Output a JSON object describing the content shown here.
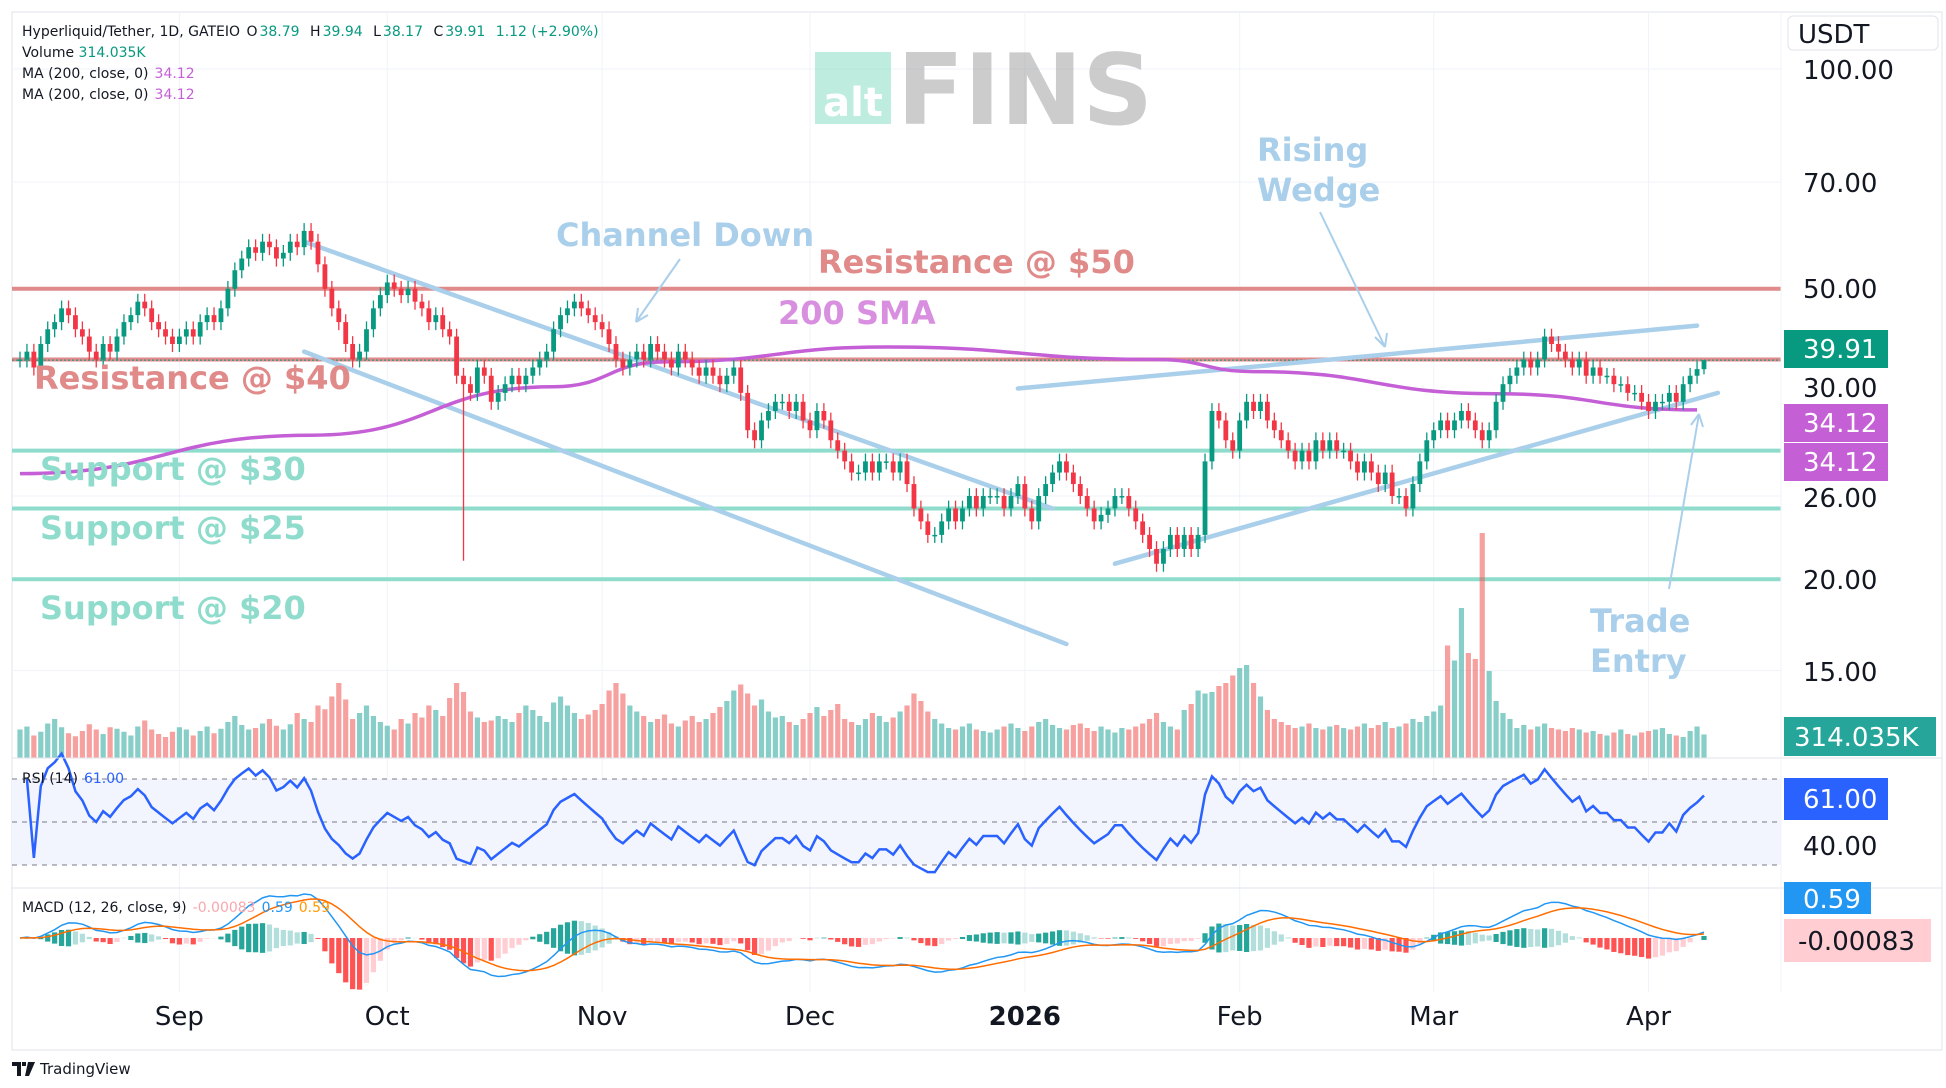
{
  "header": {
    "symbol": "Hyperliquid/Tether, 1D, GATEIO",
    "o_label": "O",
    "open": "38.79",
    "h_label": "H",
    "high": "39.94",
    "l_label": "L",
    "low": "38.17",
    "c_label": "C",
    "close": "39.91",
    "change": "1.12 (+2.90%)",
    "volume_label": "Volume",
    "volume": "314.035K",
    "ma1_label": "MA (200, close, 0)",
    "ma1_value": "34.12",
    "ma2_label": "MA (200, close, 0)",
    "ma2_value": "34.12",
    "rsi_label": "RSI (14)",
    "rsi_value": "61.00",
    "macd_label": "MACD (12, 26, close, 9)",
    "macd_hist": "-0.00083",
    "macd_line": "0.59",
    "macd_signal": "0.59"
  },
  "watermark": {
    "prefix": "alt",
    "name": "FINS"
  },
  "price_axis": {
    "currency": "USDT",
    "ticks": [
      "100.00",
      "70.00",
      "50.00",
      "30.00",
      "26.00",
      "20.00",
      "15.00"
    ],
    "rsi_tick": "40.00",
    "last_price_badge": "39.91",
    "ma_badges": [
      "34.12",
      "34.12"
    ],
    "volume_badge": "314.035K",
    "rsi_badge": "61.00",
    "macd_badge": "0.59",
    "macd_hist_badge": "-0.00083"
  },
  "time_axis": [
    {
      "label": "Sep",
      "date": "2025-09-01"
    },
    {
      "label": "Oct",
      "date": "2025-10-01"
    },
    {
      "label": "Nov",
      "date": "2025-11-01"
    },
    {
      "label": "Dec",
      "date": "2025-12-01"
    },
    {
      "label": "2026",
      "date": "2026-01-01",
      "bold": true
    },
    {
      "label": "Feb",
      "date": "2026-02-01"
    },
    {
      "label": "Mar",
      "date": "2026-03-01"
    },
    {
      "label": "Apr",
      "date": "2026-04-01"
    }
  ],
  "annotations": {
    "resistance_50": "Resistance @ $50",
    "resistance_40": "Resistance @ $40",
    "sma_200": "200 SMA",
    "channel_down": "Channel Down",
    "rising_wedge_1": "Rising",
    "rising_wedge_2": "Wedge",
    "support_30": "Support @ $30",
    "support_25": "Support @ $25",
    "support_20": "Support @ $20",
    "trade_entry_1": "Trade",
    "trade_entry_2": "Entry"
  },
  "footer": {
    "brand": "TradingView"
  },
  "colors": {
    "up": "#089981",
    "down": "#f23645",
    "vol_up": "#26a69a",
    "vol_down": "#ef5350",
    "ma": "#c45fd6",
    "rsi": "#2962ff",
    "macd": "#2196f3",
    "signal": "#ff6d00",
    "resistance": "#e08a8a",
    "support": "#8fdccc",
    "pattern": "#a9cfeb",
    "sma_label": "#d98fe0"
  },
  "chart_data": {
    "type": "candlestick",
    "scale": "log",
    "ylim": [
      12,
      110
    ],
    "start_date": "2025-08-09",
    "interval": "1D",
    "closes": [
      40,
      41,
      39,
      42,
      44,
      45,
      47,
      46,
      44,
      43,
      41,
      40,
      42,
      41,
      43,
      45,
      46,
      48,
      47,
      45,
      44,
      43,
      42,
      43,
      44,
      43,
      45,
      46,
      45,
      47,
      50,
      53,
      55,
      57,
      56,
      58,
      57,
      55,
      56,
      58,
      57,
      60,
      58,
      54,
      50,
      47,
      45,
      42,
      40,
      41,
      44,
      47,
      49,
      51,
      50,
      49,
      50,
      48,
      47,
      45,
      46,
      44,
      43,
      38,
      37,
      36,
      39,
      38,
      35,
      36,
      37,
      38,
      37,
      38,
      39,
      40,
      41,
      44,
      46,
      47,
      48,
      47,
      46,
      45,
      44,
      42,
      40,
      39,
      40,
      41,
      40,
      42,
      41,
      40,
      39,
      41,
      40,
      39,
      38,
      39,
      38,
      37,
      38,
      39,
      36,
      32,
      31,
      33,
      34,
      35,
      35,
      34,
      35,
      33,
      32,
      34,
      33,
      31,
      30,
      29,
      28,
      28,
      29,
      28,
      29,
      29,
      28,
      29,
      27,
      25,
      24,
      23,
      23,
      24,
      25,
      24,
      25,
      26,
      25,
      26,
      26,
      26,
      25,
      26,
      27,
      25,
      24,
      26,
      27,
      28,
      29,
      28,
      27,
      26,
      25,
      24,
      24.5,
      25,
      26,
      26,
      25,
      24,
      23,
      22,
      21,
      22,
      23,
      22,
      23,
      22,
      23,
      29,
      34,
      33,
      31,
      30,
      33,
      35,
      34,
      35,
      33,
      32,
      31,
      30,
      29,
      30,
      29,
      31,
      30,
      31,
      30,
      30,
      29,
      28,
      29,
      28,
      27,
      28,
      26,
      26,
      25,
      27,
      29,
      31,
      32,
      33,
      32,
      33,
      34,
      33,
      32,
      31,
      32,
      35,
      37,
      38,
      39,
      40,
      39,
      40,
      43,
      42,
      41,
      40,
      39,
      40,
      38,
      39,
      38,
      38,
      37,
      37,
      36,
      36,
      35,
      34,
      35,
      35,
      36,
      35,
      37,
      38,
      38.8,
      39.91
    ],
    "last_ohlc": {
      "open": 38.79,
      "high": 39.94,
      "low": 38.17,
      "close": 39.91
    },
    "wick_lows": [
      {
        "date": "2025-10-12",
        "low": 21.2
      }
    ],
    "volume_k": [
      380,
      420,
      300,
      350,
      460,
      520,
      410,
      330,
      290,
      360,
      450,
      380,
      320,
      410,
      390,
      350,
      300,
      420,
      500,
      380,
      320,
      280,
      350,
      410,
      380,
      300,
      360,
      420,
      330,
      390,
      480,
      560,
      440,
      380,
      400,
      460,
      520,
      430,
      380,
      450,
      600,
      520,
      480,
      700,
      650,
      820,
      1000,
      780,
      520,
      600,
      700,
      560,
      480,
      430,
      380,
      520,
      460,
      600,
      540,
      700,
      640,
      560,
      800,
      1000,
      880,
      620,
      540,
      480,
      500,
      560,
      520,
      480,
      600,
      700,
      640,
      560,
      480,
      740,
      820,
      700,
      600,
      520,
      580,
      640,
      720,
      900,
      1000,
      860,
      700,
      620,
      560,
      480,
      520,
      580,
      460,
      420,
      500,
      560,
      480,
      520,
      600,
      680,
      760,
      900,
      980,
      860,
      700,
      780,
      620,
      540,
      560,
      480,
      440,
      520,
      600,
      680,
      560,
      640,
      720,
      520,
      480,
      440,
      520,
      600,
      560,
      480,
      540,
      620,
      700,
      860,
      760,
      620,
      520,
      460,
      400,
      380,
      420,
      460,
      380,
      360,
      340,
      380,
      420,
      460,
      400,
      360,
      420,
      480,
      520,
      440,
      400,
      380,
      440,
      460,
      400,
      360,
      420,
      380,
      340,
      400,
      380,
      420,
      460,
      520,
      600,
      480,
      420,
      380,
      640,
      720,
      900,
      860,
      880,
      960,
      1000,
      1100,
      1200,
      1240,
      1000,
      820,
      640,
      520,
      480,
      440,
      400,
      420,
      460,
      400,
      380,
      420,
      440,
      400,
      380,
      420,
      460,
      400,
      440,
      480,
      400,
      420,
      460,
      520,
      480,
      560,
      620,
      700,
      1500,
      1300,
      2000,
      1400,
      1320,
      3000,
      1160,
      760,
      600,
      520,
      400,
      440,
      380,
      420,
      460,
      400,
      380,
      360,
      400,
      380,
      340,
      360,
      320,
      300,
      340,
      380,
      320,
      300,
      340,
      360,
      380,
      400,
      320,
      300,
      280,
      360,
      420,
      314.035
    ],
    "ma200": [
      [
        "2025-08-09",
        27.9
      ],
      [
        "2025-09-20",
        31.5
      ],
      [
        "2025-10-25",
        36.7
      ],
      [
        "2025-11-10",
        39.7
      ],
      [
        "2025-12-12",
        41.6
      ],
      [
        "2026-01-20",
        40.0
      ],
      [
        "2026-02-03",
        38.5
      ],
      [
        "2026-03-10",
        35.9
      ],
      [
        "2026-04-08",
        34.12
      ]
    ],
    "horizontal_levels": {
      "resistance": [
        50,
        40
      ],
      "support": [
        30,
        25,
        20
      ]
    },
    "rsi_levels": [
      70,
      50,
      30
    ],
    "pattern_lines": {
      "channel_upper": [
        [
          "2025-09-19",
          58
        ],
        [
          "2026-01-05",
          25
        ]
      ],
      "channel_lower": [
        [
          "2025-09-19",
          41
        ],
        [
          "2026-01-07",
          16.3
        ]
      ],
      "wedge_upper": [
        [
          "2025-12-31",
          36.5
        ],
        [
          "2026-04-08",
          44.5
        ]
      ],
      "wedge_lower": [
        [
          "2026-01-14",
          21
        ],
        [
          "2026-04-11",
          36
        ]
      ]
    }
  }
}
